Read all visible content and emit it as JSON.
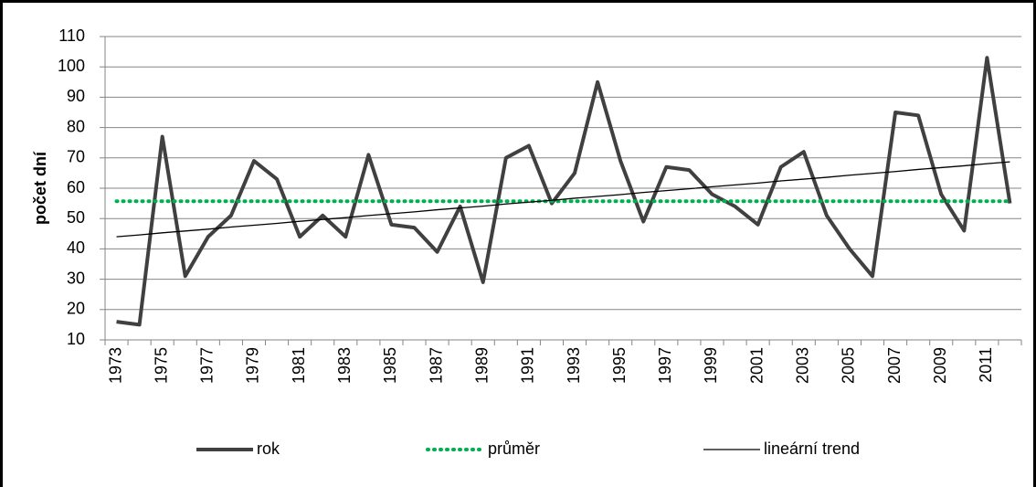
{
  "chart_data": {
    "type": "line",
    "y_label": "počet dní",
    "categories": [
      "1973",
      null,
      "1975",
      null,
      "1977",
      null,
      "1979",
      null,
      "1981",
      null,
      "1983",
      null,
      "1985",
      null,
      "1987",
      null,
      "1989",
      null,
      "1991",
      null,
      "1993",
      null,
      "1995",
      null,
      "1997",
      null,
      "1999",
      null,
      "2001",
      null,
      "2003",
      null,
      "2005",
      null,
      "2007",
      null,
      "2009",
      null,
      "2011",
      null
    ],
    "series": [
      {
        "name": "rok",
        "color": "#404040",
        "style": "solid",
        "values": [
          16,
          15,
          77,
          31,
          44,
          51,
          69,
          63,
          44,
          51,
          44,
          71,
          48,
          47,
          39,
          54,
          29,
          70,
          74,
          55,
          65,
          95,
          69,
          49,
          67,
          66,
          58,
          54,
          48,
          67,
          72,
          51,
          40,
          31,
          85,
          84,
          58,
          46,
          103,
          55
        ]
      },
      {
        "name": "průměr",
        "color": "#00b050",
        "style": "dotted",
        "values": [
          55.7,
          55.7,
          55.7,
          55.7,
          55.7,
          55.7,
          55.7,
          55.7,
          55.7,
          55.7,
          55.7,
          55.7,
          55.7,
          55.7,
          55.7,
          55.7,
          55.7,
          55.7,
          55.7,
          55.7,
          55.7,
          55.7,
          55.7,
          55.7,
          55.7,
          55.7,
          55.7,
          55.7,
          55.7,
          55.7,
          55.7,
          55.7,
          55.7,
          55.7,
          55.7,
          55.7,
          55.7,
          55.7,
          55.7,
          55.7
        ]
      },
      {
        "name": "lineární trend",
        "color": "#000000",
        "style": "thin",
        "values": [
          44.0,
          44.6,
          45.3,
          45.9,
          46.5,
          47.2,
          47.8,
          48.4,
          49.1,
          49.7,
          50.3,
          51.0,
          51.6,
          52.2,
          52.9,
          53.5,
          54.1,
          54.8,
          55.4,
          56.0,
          56.7,
          57.3,
          57.9,
          58.6,
          59.2,
          59.8,
          60.5,
          61.1,
          61.7,
          62.4,
          63.0,
          63.6,
          64.3,
          64.9,
          65.5,
          66.2,
          66.8,
          67.4,
          68.1,
          68.7
        ]
      }
    ],
    "ylim": [
      10,
      110
    ],
    "yticks": [
      10,
      20,
      30,
      40,
      50,
      60,
      70,
      80,
      90,
      100,
      110
    ],
    "grid": true,
    "legend": "bottom"
  }
}
